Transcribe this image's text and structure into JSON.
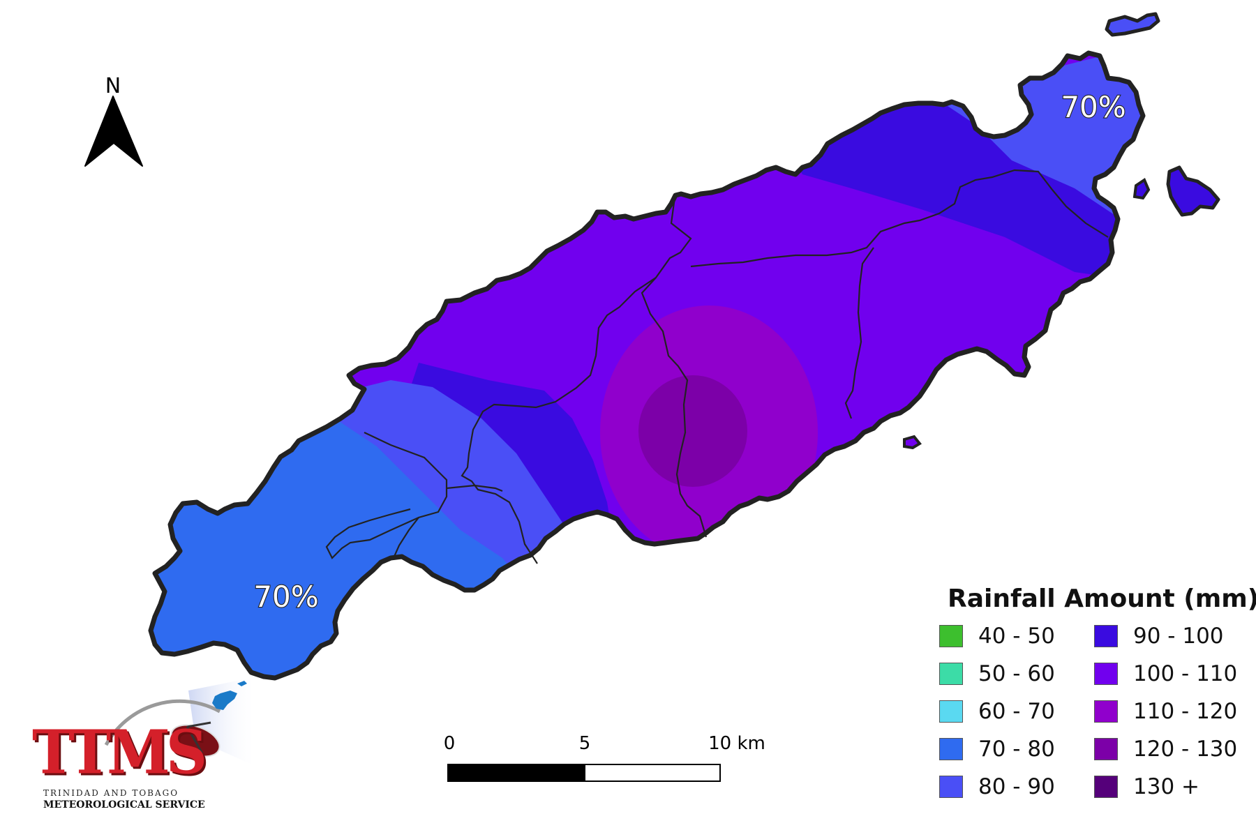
{
  "map": {
    "north_label": "N",
    "percent_labels": [
      "70%",
      "70%"
    ],
    "scale_bar": {
      "ticks": [
        "0",
        "5",
        "10 km"
      ]
    }
  },
  "legend": {
    "title": "Rainfall Amount (mm)",
    "items": [
      {
        "label": "40 - 50",
        "color": "#3dbf2e"
      },
      {
        "label": "50 - 60",
        "color": "#3cdca7"
      },
      {
        "label": "60 - 70",
        "color": "#5ad9f1"
      },
      {
        "label": "70 - 80",
        "color": "#2f6bf0"
      },
      {
        "label": "80 - 90",
        "color": "#4a4ff6"
      },
      {
        "label": "90 - 100",
        "color": "#3a0be0"
      },
      {
        "label": "100 - 110",
        "color": "#7100ee"
      },
      {
        "label": "110 - 120",
        "color": "#9000cc"
      },
      {
        "label": "120 - 130",
        "color": "#7c00a8"
      },
      {
        "label": "130 +",
        "color": "#55007a"
      }
    ]
  },
  "logo": {
    "wordmark": "TTMS",
    "line1": "TRINIDAD AND TOBAGO",
    "line2": "METEOROLOGICAL SERVICE"
  }
}
